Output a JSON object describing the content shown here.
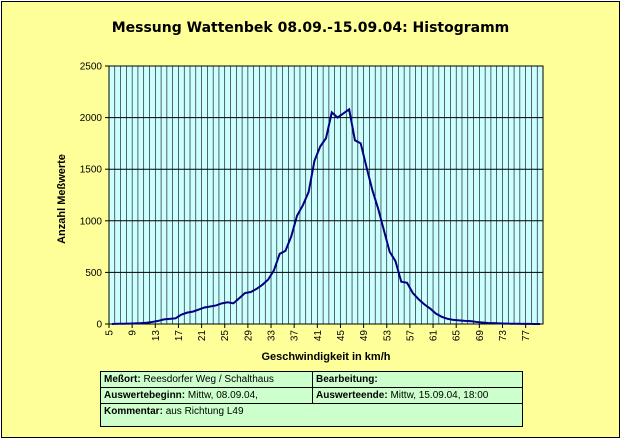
{
  "chart_data": {
    "type": "line",
    "title": "Messung Wattenbek 08.09.-15.09.04: Histogramm",
    "xlabel": "Geschwindigkeit in km/h",
    "ylabel": "Anzahl Meßwerte",
    "xlim": [
      5,
      80
    ],
    "ylim": [
      0,
      2500
    ],
    "x_tick_labels": [
      "5",
      "9",
      "13",
      "17",
      "21",
      "25",
      "29",
      "33",
      "37",
      "41",
      "45",
      "49",
      "53",
      "57",
      "61",
      "65",
      "69",
      "73",
      "77"
    ],
    "y_tick_labels": [
      "0",
      "500",
      "1000",
      "1500",
      "2000",
      "2500"
    ],
    "grid": true,
    "colors": {
      "plot_bg": "#ccffff",
      "line": "#000080",
      "grid": "#000000",
      "frame_bg": "#ffff99",
      "info_bg": "#ccffcc"
    },
    "x": [
      5,
      6,
      7,
      8,
      9,
      10,
      11,
      12,
      13,
      14,
      15,
      16,
      17,
      18,
      19,
      20,
      21,
      22,
      23,
      24,
      25,
      26,
      27,
      28,
      29,
      30,
      31,
      32,
      33,
      34,
      35,
      36,
      37,
      38,
      39,
      40,
      41,
      42,
      43,
      44,
      45,
      46,
      47,
      48,
      49,
      50,
      51,
      52,
      53,
      54,
      55,
      56,
      57,
      58,
      59,
      60,
      61,
      62,
      63,
      64,
      65,
      66,
      67,
      68,
      69,
      70,
      71,
      72,
      73,
      74,
      75,
      76,
      77,
      78,
      79
    ],
    "values": [
      0,
      2,
      3,
      4,
      6,
      8,
      12,
      20,
      30,
      45,
      50,
      55,
      90,
      110,
      120,
      140,
      160,
      170,
      180,
      200,
      210,
      200,
      250,
      300,
      310,
      340,
      380,
      430,
      520,
      680,
      710,
      850,
      1050,
      1150,
      1280,
      1580,
      1720,
      1800,
      2050,
      2000,
      2040,
      2080,
      1780,
      1750,
      1520,
      1300,
      1120,
      910,
      700,
      610,
      410,
      400,
      300,
      240,
      190,
      150,
      100,
      70,
      50,
      40,
      35,
      30,
      28,
      20,
      15,
      10,
      8,
      6,
      4,
      3,
      2,
      1,
      1,
      0,
      0
    ]
  },
  "info": {
    "messort_label": "Meßort:",
    "messort_value": "Reesdorfer Weg / Schalthaus",
    "bearbeitung_label": "Bearbeitung:",
    "bearbeitung_value": "",
    "beginn_label": "Auswertebeginn:",
    "beginn_value": "Mittw, 08.09.04,",
    "ende_label": "Auswerteende:",
    "ende_value": "Mittw, 15.09.04, 18:00",
    "kommentar_label": "Kommentar:",
    "kommentar_value": "aus Richtung L49"
  }
}
